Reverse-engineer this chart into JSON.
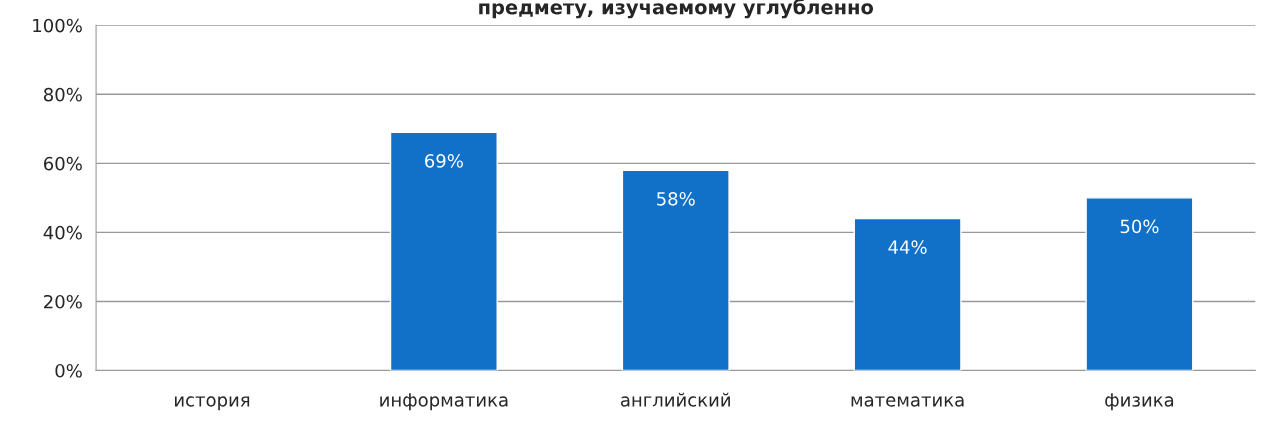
{
  "chart_data": {
    "type": "bar",
    "title": "предмету, изучаемому углубленно",
    "categories": [
      "история",
      "информатика",
      "английский",
      "математика",
      "физика"
    ],
    "values": [
      null,
      69,
      58,
      44,
      50
    ],
    "color": "#1170c8",
    "value_labels": [
      null,
      "69%",
      "58%",
      "44%",
      "50%"
    ],
    "ylim": [
      0,
      100
    ],
    "yticks": [
      {
        "value": 0,
        "label": "0%"
      },
      {
        "value": 20,
        "label": "20%"
      },
      {
        "value": 40,
        "label": "40%"
      },
      {
        "value": 60,
        "label": "60%"
      },
      {
        "value": 80,
        "label": "80%"
      },
      {
        "value": 100,
        "label": "100%"
      }
    ],
    "grid": "y",
    "legend": false
  }
}
